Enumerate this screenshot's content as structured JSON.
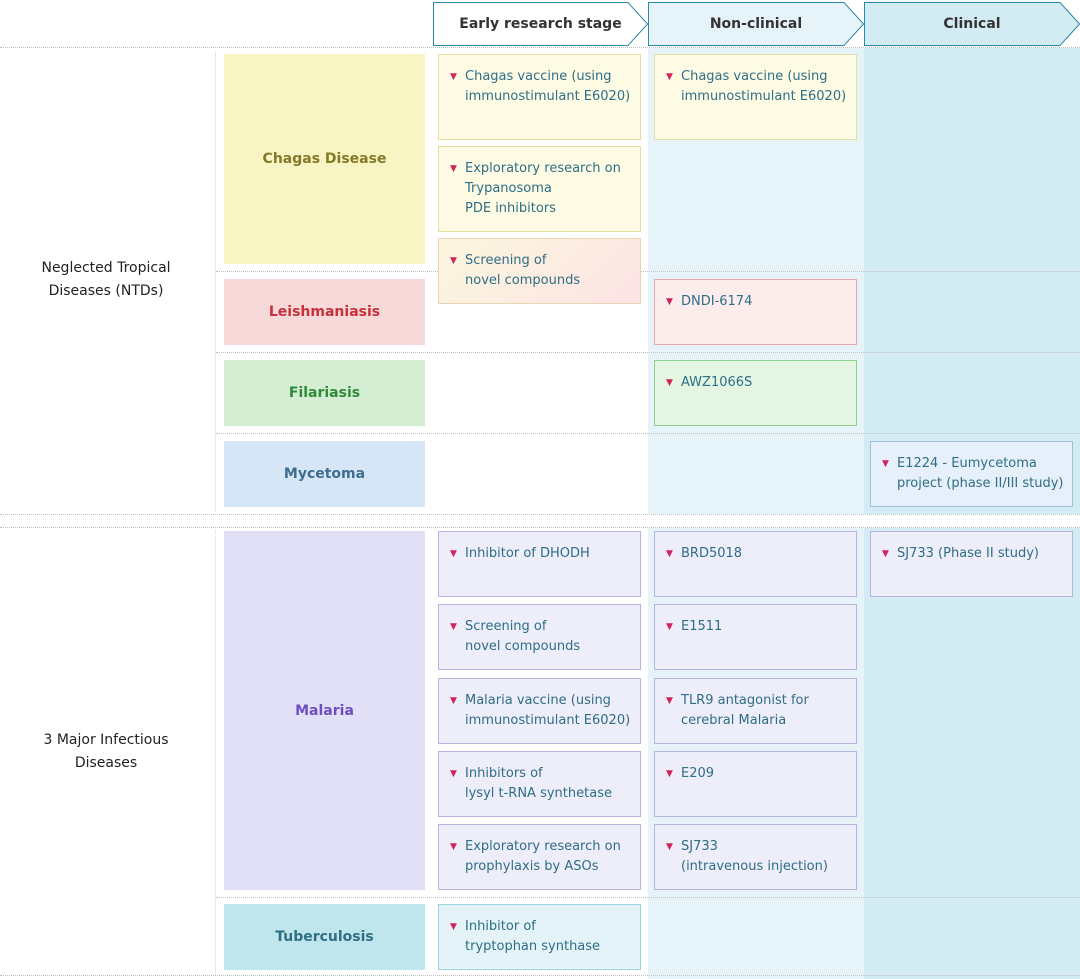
{
  "phases": [
    {
      "label": "Early research stage"
    },
    {
      "label": "Non-clinical"
    },
    {
      "label": "Clinical"
    }
  ],
  "groups": [
    {
      "label": "Neglected Tropical\nDiseases (NTDs)"
    },
    {
      "label": "3 Major Infectious\nDiseases"
    }
  ],
  "diseases": [
    {
      "label": "Chagas Disease",
      "color": "#837a28"
    },
    {
      "label": "Leishmaniasis",
      "color": "#c8303a"
    },
    {
      "label": "Filariasis",
      "color": "#2e8b3a"
    },
    {
      "label": "Mycetoma",
      "color": "#3f6d8f"
    },
    {
      "label": "Malaria",
      "color": "#6f4fc0"
    },
    {
      "label": "Tuberculosis",
      "color": "#2f6f82"
    }
  ],
  "projects": {
    "chagas_early_1": "Chagas vaccine (using\nimmunostimulant E6020)",
    "chagas_early_2": "Exploratory research on\nTrypanosoma\nPDE inhibitors",
    "chagas_early_3": "Screening of\nnovel compounds",
    "chagas_nc_1": "Chagas vaccine (using\nimmunostimulant E6020)",
    "leish_nc_1": "DNDI-6174",
    "filaria_nc_1": "AWZ1066S",
    "myce_cl_1": "E1224 - Eumycetoma\nproject (phase II/III study)",
    "mal_early_1": "Inhibitor of DHODH",
    "mal_early_2": "Screening of\nnovel compounds",
    "mal_early_3": "Malaria vaccine (using\nimmunostimulant E6020)",
    "mal_early_4": "Inhibitors of\nlysyl t-RNA synthetase",
    "mal_early_5": "Exploratory research on\nprophylaxis by ASOs",
    "mal_nc_1": "BRD5018",
    "mal_nc_2": "E1511",
    "mal_nc_3": "TLR9 antagonist for\ncerebral Malaria",
    "mal_nc_4": "E209",
    "mal_nc_5": "SJ733\n(intravenous injection)",
    "mal_cl_1": "SJ733 (Phase II study)",
    "tb_early_1": "Inhibitor of\ntryptophan synthase"
  },
  "colors": {
    "phase_border": "#2b8aa8",
    "phase_fill_early": "#ffffff",
    "phase_fill_nc": "#e6f3f8",
    "phase_fill_cl": "#d3ecf4",
    "bullet": "#d0235b",
    "card_text": "#2f6e85"
  }
}
